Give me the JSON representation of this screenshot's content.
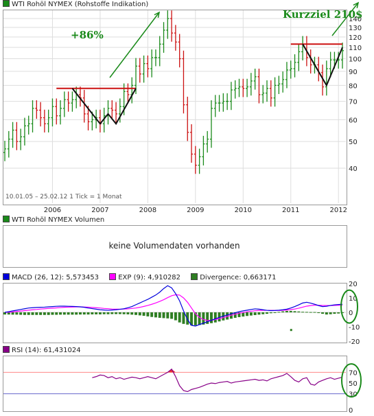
{
  "chart_data": [
    {
      "type": "ohlc",
      "title": "WTI Rohöl NYMEX (Rohstoffe Indikation)",
      "info": "10.01.05 – 25.02.12   1 Tick = 1 Monat",
      "log_scale": true,
      "ylim": [
        30,
        150
      ],
      "yticks": [
        40,
        50,
        60,
        70,
        80,
        90,
        100,
        110,
        120,
        130,
        140
      ],
      "xtick_labels": [
        "2006",
        "2007",
        "2008",
        "2009",
        "2010",
        "2011",
        "2012"
      ],
      "grid": true,
      "monthly_close": [
        47,
        51,
        55,
        50,
        52,
        57,
        58,
        66,
        65,
        61,
        58,
        61,
        67,
        62,
        66,
        71,
        69,
        71,
        74,
        72,
        63,
        59,
        60,
        61,
        58,
        62,
        66,
        65,
        63,
        67,
        76,
        74,
        80,
        94,
        88,
        96,
        92,
        101,
        101,
        113,
        127,
        140,
        124,
        115,
        100,
        68,
        54,
        45,
        41,
        44,
        49,
        51,
        66,
        69,
        69,
        70,
        70,
        77,
        78,
        79,
        78,
        79,
        83,
        86,
        74,
        75,
        78,
        72,
        80,
        81,
        84,
        91,
        92,
        97,
        106,
        113,
        101,
        95,
        95,
        89,
        79,
        92,
        99,
        99,
        99,
        107
      ],
      "annotations": {
        "gain_text": "+86%",
        "target_text": "Kurzziel 210$",
        "resistance_levels": [
          {
            "value": 78,
            "from": "2006-02",
            "to": "2007-10"
          },
          {
            "value": 113,
            "from": "2011-01",
            "to": "2012-02"
          }
        ]
      }
    },
    {
      "type": "bar",
      "title": "WTI Rohöl NYMEX Volumen",
      "message": "keine Volumendaten vorhanden"
    },
    {
      "type": "line",
      "title": "MACD",
      "series": [
        {
          "name": "MACD (26, 12): 5,573453",
          "color": "#0000dd"
        },
        {
          "name": "EXP (9): 4,910282",
          "color": "#ff00ff"
        },
        {
          "name": "Divergence: 0,663171",
          "color": "#2e7d22"
        }
      ],
      "ylim": [
        -20,
        20
      ],
      "yticks": [
        20,
        10,
        0,
        -10,
        -20
      ],
      "macd": [
        0,
        0.5,
        1,
        1.5,
        2,
        2.5,
        3,
        3.2,
        3.4,
        3.5,
        3.6,
        3.8,
        4,
        4.2,
        4.3,
        4.3,
        4.2,
        4.1,
        4,
        3.8,
        3.5,
        3,
        2.6,
        2.2,
        1.8,
        1.6,
        1.4,
        1.6,
        1.8,
        2.1,
        2.5,
        3.2,
        4,
        5.3,
        6.5,
        7.8,
        9,
        10.5,
        12,
        14,
        16.5,
        18.5,
        17,
        13,
        8,
        1,
        -5,
        -9,
        -9.5,
        -8.5,
        -7.5,
        -6.5,
        -5.5,
        -4.5,
        -3.5,
        -2.6,
        -1.8,
        -1,
        -0.3,
        0.5,
        1,
        1.5,
        2,
        2.4,
        2.2,
        1.8,
        1.4,
        1.2,
        1.3,
        1.5,
        1.8,
        2.2,
        3,
        4,
        5.2,
        6.5,
        7,
        6.4,
        5.6,
        4.7,
        4,
        4.2,
        4.8,
        5.2,
        5.4,
        5.6
      ],
      "signal": [
        0,
        0.1,
        0.3,
        0.6,
        0.9,
        1.2,
        1.5,
        1.8,
        2,
        2.3,
        2.5,
        2.7,
        2.9,
        3.1,
        3.3,
        3.5,
        3.6,
        3.7,
        3.8,
        3.8,
        3.7,
        3.6,
        3.4,
        3.2,
        3,
        2.7,
        2.5,
        2.3,
        2.2,
        2.2,
        2.3,
        2.4,
        2.7,
        3,
        3.5,
        4.1,
        4.8,
        5.6,
        6.5,
        7.6,
        8.8,
        10.2,
        11.5,
        12.2,
        12,
        10,
        7,
        3,
        -1,
        -3.5,
        -5,
        -5.6,
        -5.5,
        -5,
        -4.3,
        -3.6,
        -2.8,
        -2,
        -1.3,
        -0.6,
        -0.1,
        0.4,
        0.8,
        1.1,
        1.3,
        1.4,
        1.4,
        1.4,
        1.3,
        1.3,
        1.4,
        1.6,
        1.9,
        2.3,
        2.9,
        3.6,
        4.3,
        4.7,
        4.9,
        4.9,
        4.8,
        4.7,
        4.7,
        4.8,
        4.9,
        4.9
      ],
      "histogram": [
        -1.5,
        -1.5,
        -1.6,
        -1.6,
        -1.7,
        -1.8,
        -1.8,
        -1.8,
        -1.8,
        -1.8,
        -1.8,
        -1.8,
        -1.7,
        -1.7,
        -1.6,
        -1.6,
        -1.6,
        -1.6,
        -1.6,
        -1.5,
        -1.5,
        -1.5,
        -1.4,
        -1.4,
        -1.4,
        -1.3,
        -1.3,
        -1.2,
        -1.2,
        -1.2,
        -1.3,
        -1.4,
        -1.6,
        -1.8,
        -2.1,
        -2.4,
        -2.8,
        -3.2,
        -3.5,
        -3.8,
        -4,
        -4.2,
        -4.5,
        -5.5,
        -7,
        -8,
        -8.5,
        -9,
        -9,
        -8.8,
        -8.5,
        -8,
        -7.5,
        -7,
        -6.3,
        -5.6,
        -5,
        -4.4,
        -3.8,
        -3.3,
        -2.9,
        -2.5,
        -2.2,
        -1.9,
        -1.6,
        -1.3,
        -1,
        -0.6,
        -0.3,
        0.3,
        0.7,
        1,
        1,
        0.8,
        0.6,
        0.4,
        0.3,
        0.2,
        0.2,
        -0.5,
        -1,
        -1.5,
        -1.3,
        -1,
        -0.8,
        -0.5
      ],
      "outlier": -12
    },
    {
      "type": "line",
      "title": "RSI",
      "series": [
        {
          "name": "RSI (14): 61,431024",
          "color": "#880088"
        }
      ],
      "ylim": [
        0,
        100
      ],
      "yticks": [
        70,
        50,
        30,
        0
      ],
      "reference_lines": [
        70,
        30
      ],
      "values": [
        null,
        null,
        null,
        null,
        null,
        null,
        null,
        null,
        null,
        null,
        null,
        null,
        null,
        null,
        null,
        null,
        null,
        null,
        null,
        null,
        null,
        null,
        60,
        62,
        65,
        64,
        60,
        62,
        58,
        60,
        57,
        59,
        61,
        60,
        58,
        60,
        62,
        60,
        58,
        62,
        66,
        70,
        76,
        62,
        45,
        36,
        34,
        38,
        40,
        42,
        45,
        48,
        50,
        49,
        51,
        52,
        53,
        50,
        52,
        53,
        54,
        55,
        56,
        57,
        55,
        56,
        54,
        58,
        60,
        62,
        64,
        68,
        62,
        55,
        52,
        58,
        60,
        48,
        46,
        52,
        55,
        58,
        60,
        57,
        59,
        61
      ]
    }
  ],
  "colors": {
    "up": "#1a8a1a",
    "down": "#cc1111",
    "resistance": "#cc1111",
    "pattern": "#111111",
    "arrow": "#1a8a1a",
    "highlight": "#1a8a1a"
  }
}
